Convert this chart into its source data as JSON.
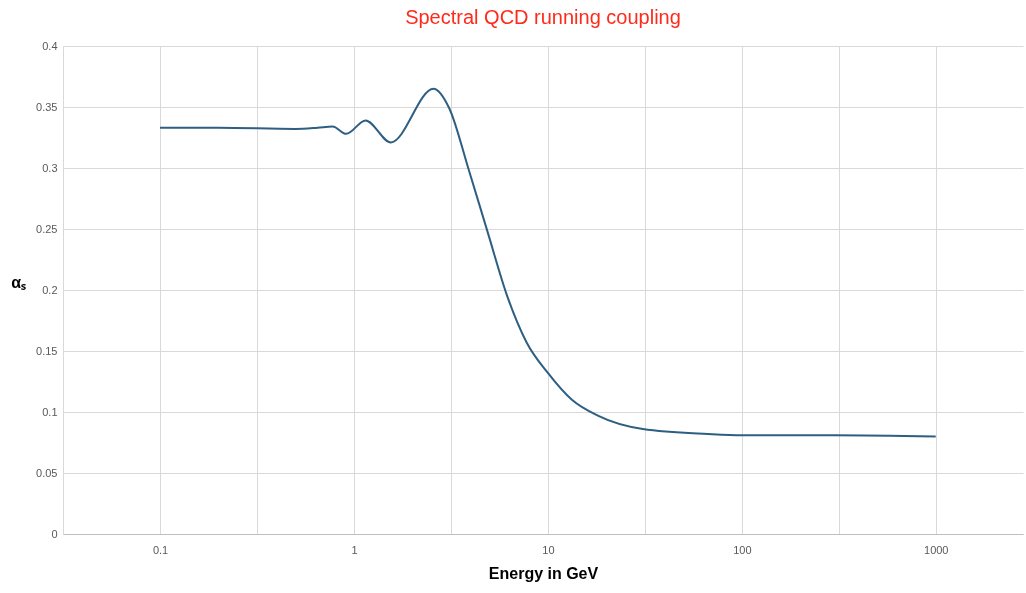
{
  "chart_data": {
    "type": "line",
    "title": "Spectral QCD running coupling",
    "xlabel": "Energy in GeV",
    "ylabel": "αₛ",
    "x": [
      0.1,
      0.2,
      0.5,
      0.65,
      0.776,
      0.912,
      1.148,
      1.55,
      2.57,
      3.1,
      3.9,
      4.9,
      6.17,
      7.77,
      10,
      13.3,
      18.1,
      30.9,
      66.8,
      100,
      300,
      1000
    ],
    "series": [
      {
        "color": "#2e5f82",
        "values": [
          0.333,
          0.333,
          0.332,
          0.333,
          0.334,
          0.328,
          0.339,
          0.321,
          0.365,
          0.349,
          0.299,
          0.247,
          0.195,
          0.157,
          0.132,
          0.11,
          0.097,
          0.086,
          0.082,
          0.081,
          0.081,
          0.08
        ]
      }
    ],
    "log": "x",
    "xlim": [
      0.0316,
      2818
    ],
    "xticks": [
      {
        "value": 0.0316,
        "label": null
      },
      0.1,
      {
        "value": 0.316,
        "label": null
      },
      1,
      {
        "value": 3.16,
        "label": null
      },
      10,
      {
        "value": 31.6,
        "label": null
      },
      100,
      {
        "value": 316,
        "label": null
      },
      1000
    ],
    "ylim": [
      0,
      0.4
    ],
    "yticks": [
      0,
      0.05,
      0.1,
      0.15,
      0.2,
      0.25,
      0.3,
      0.35,
      0.4
    ],
    "grid": true,
    "marker": "none",
    "line_style": "solid"
  }
}
